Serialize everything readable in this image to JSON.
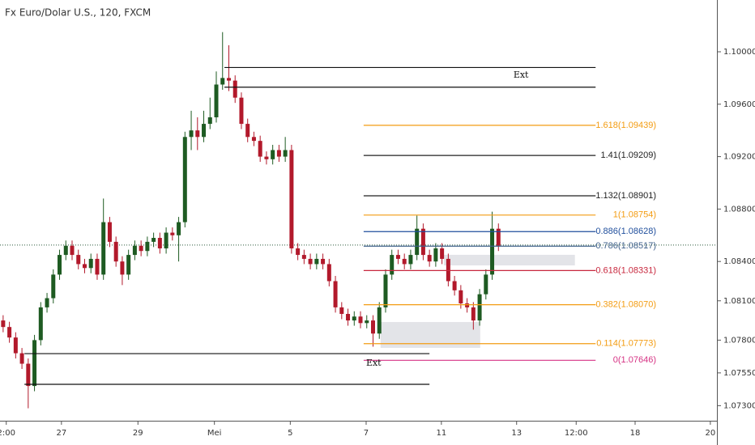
{
  "chart_data": {
    "type": "candlestick",
    "title": "Fx Euro/Dolar U.S., 120, FXCM",
    "x": [
      0,
      1,
      2,
      3,
      4,
      5,
      6,
      7,
      8,
      9,
      10,
      11,
      12,
      13,
      14,
      15,
      16,
      17,
      18,
      19,
      20,
      21,
      22,
      23,
      24,
      25,
      26,
      27,
      28,
      29,
      30,
      31,
      32,
      33,
      34,
      35,
      36,
      37,
      38,
      39,
      40,
      41,
      42,
      43,
      44,
      45,
      46,
      47,
      48,
      49,
      50,
      51,
      52,
      53,
      54,
      55,
      56,
      57,
      58,
      59,
      60,
      61,
      62,
      63,
      64,
      65,
      66,
      67,
      68,
      69,
      70,
      71,
      72,
      73,
      74,
      75,
      76,
      77,
      78,
      79
    ],
    "open": [
      1.0795,
      1.079,
      1.0782,
      1.077,
      1.0762,
      1.0745,
      1.078,
      1.0805,
      1.0812,
      1.083,
      1.0845,
      1.0852,
      1.0845,
      1.0838,
      1.0835,
      1.0842,
      1.083,
      1.087,
      1.0855,
      1.084,
      1.083,
      1.0845,
      1.0852,
      1.0848,
      1.0855,
      1.0858,
      1.085,
      1.0862,
      1.086,
      1.087,
      1.0935,
      1.094,
      1.0935,
      1.0945,
      1.095,
      1.0975,
      1.098,
      1.0978,
      1.0965,
      1.0945,
      1.0935,
      1.0932,
      1.092,
      1.0918,
      1.0925,
      1.092,
      1.0925,
      1.085,
      1.0845,
      1.0842,
      1.0838,
      1.0842,
      1.0838,
      1.0825,
      1.0805,
      1.08,
      1.0795,
      1.0798,
      1.0793,
      1.0795,
      1.0785,
      1.0805,
      1.083,
      1.0845,
      1.0842,
      1.0838,
      1.0845,
      1.0865,
      1.0845,
      1.084,
      1.085,
      1.0842,
      1.0825,
      1.0818,
      1.0808,
      1.0805,
      1.0795,
      1.0815,
      1.083,
      1.0865
    ],
    "high": [
      1.0799,
      1.0794,
      1.0786,
      1.0774,
      1.0766,
      1.0784,
      1.0809,
      1.0816,
      1.0834,
      1.0849,
      1.0856,
      1.0856,
      1.0849,
      1.0842,
      1.0846,
      1.0846,
      1.0888,
      1.0874,
      1.0859,
      1.0844,
      1.0849,
      1.0856,
      1.0856,
      1.0859,
      1.0862,
      1.0862,
      1.0866,
      1.0866,
      1.0874,
      1.0939,
      1.0955,
      1.095,
      1.0955,
      1.0965,
      1.0985,
      1.1015,
      1.1005,
      1.0982,
      1.0969,
      1.0949,
      1.0939,
      1.0936,
      1.0924,
      1.0929,
      1.0929,
      1.0935,
      1.0929,
      1.0854,
      1.0849,
      1.0846,
      1.0846,
      1.0846,
      1.0842,
      1.0829,
      1.0809,
      1.0804,
      1.0802,
      1.0802,
      1.0799,
      1.0799,
      1.0809,
      1.0834,
      1.0849,
      1.0849,
      1.0846,
      1.0849,
      1.0875,
      1.0869,
      1.0849,
      1.0854,
      1.0854,
      1.0846,
      1.0829,
      1.0822,
      1.0812,
      1.0809,
      1.0819,
      1.0834,
      1.0878,
      1.0869
    ],
    "low": [
      1.0786,
      1.0778,
      1.0766,
      1.0758,
      1.0728,
      1.0741,
      1.0776,
      1.0801,
      1.0808,
      1.0826,
      1.0841,
      1.0841,
      1.0834,
      1.0831,
      1.0831,
      1.0826,
      1.0826,
      1.0851,
      1.0836,
      1.0822,
      1.0826,
      1.0841,
      1.0844,
      1.0844,
      1.0851,
      1.0846,
      1.0846,
      1.0856,
      1.084,
      1.0866,
      1.0925,
      1.0925,
      1.0931,
      1.0941,
      1.0946,
      1.0971,
      1.097,
      1.0961,
      1.0941,
      1.0931,
      1.0928,
      1.0916,
      1.0914,
      1.0914,
      1.0916,
      1.0916,
      1.0846,
      1.0841,
      1.0838,
      1.0834,
      1.0834,
      1.0834,
      1.0821,
      1.0801,
      1.0796,
      1.0791,
      1.0791,
      1.0789,
      1.0789,
      1.0775,
      1.0781,
      1.0801,
      1.0826,
      1.0838,
      1.0834,
      1.0834,
      1.0841,
      1.0841,
      1.0836,
      1.0836,
      1.0838,
      1.0821,
      1.0814,
      1.0804,
      1.0801,
      1.0788,
      1.0791,
      1.0811,
      1.0826,
      1.0848
    ],
    "close": [
      1.079,
      1.0782,
      1.077,
      1.0762,
      1.0745,
      1.078,
      1.0805,
      1.0812,
      1.083,
      1.0845,
      1.0852,
      1.0845,
      1.0838,
      1.0835,
      1.0842,
      1.083,
      1.087,
      1.0855,
      1.084,
      1.083,
      1.0845,
      1.0852,
      1.0848,
      1.0855,
      1.0858,
      1.085,
      1.0862,
      1.086,
      1.087,
      1.0935,
      1.094,
      1.0935,
      1.0945,
      1.095,
      1.0975,
      1.098,
      1.0978,
      1.0965,
      1.0945,
      1.0935,
      1.0932,
      1.092,
      1.0918,
      1.0925,
      1.092,
      1.0925,
      1.085,
      1.0845,
      1.0842,
      1.0838,
      1.0842,
      1.0838,
      1.0825,
      1.0805,
      1.08,
      1.0795,
      1.0798,
      1.0793,
      1.0795,
      1.0785,
      1.0805,
      1.083,
      1.0845,
      1.0842,
      1.0838,
      1.0845,
      1.0865,
      1.0845,
      1.084,
      1.085,
      1.0842,
      1.0825,
      1.0818,
      1.0808,
      1.0805,
      1.0795,
      1.0815,
      1.083,
      1.0865,
      1.0852
    ],
    "up_color": "#1e5b22",
    "down_color": "#b2192b",
    "xlim": [
      -0.5,
      113.85
    ],
    "xticks": [
      {
        "value": 0.5,
        "label": "2:00"
      },
      {
        "value": 9.3,
        "label": "27"
      },
      {
        "value": 21.5,
        "label": "29"
      },
      {
        "value": 33.7,
        "label": "Mei"
      },
      {
        "value": 45.8,
        "label": "5"
      },
      {
        "value": 57.9,
        "label": "7"
      },
      {
        "value": 69.9,
        "label": "11"
      },
      {
        "value": 81.9,
        "label": "13"
      },
      {
        "value": 91.4,
        "label": "12:00"
      },
      {
        "value": 100.8,
        "label": "18"
      },
      {
        "value": 112.8,
        "label": "20"
      }
    ],
    "ylim": [
      1.07185,
      1.10395
    ],
    "yticks": [
      {
        "value": 1.1,
        "label": "1.10000"
      },
      {
        "value": 1.096,
        "label": "1.09600"
      },
      {
        "value": 1.092,
        "label": "1.09200"
      },
      {
        "value": 1.088,
        "label": "1.08800"
      },
      {
        "value": 1.084,
        "label": "1.08400"
      },
      {
        "value": 1.081,
        "label": "1.08100"
      },
      {
        "value": 1.078,
        "label": "1.07800"
      },
      {
        "value": 1.0755,
        "label": "1.07550"
      },
      {
        "value": 1.073,
        "label": "1.07300"
      }
    ],
    "last_price": 1.08525,
    "fib_range": [
      57.5,
      94.5
    ],
    "levels": [
      {
        "label": "1.618(1.09439)",
        "value": 1.09439,
        "color": "#f39c12"
      },
      {
        "label": "1.41(1.09209)",
        "value": 1.09209,
        "color": "#222222"
      },
      {
        "label": "1.132(1.08901)",
        "value": 1.08901,
        "color": "#222222"
      },
      {
        "label": "1(1.08754)",
        "value": 1.08754,
        "color": "#f39c12"
      },
      {
        "label": "0.886(1.08628)",
        "value": 1.08628,
        "color": "#1f4e9c"
      },
      {
        "label": "0.786(1.08517)",
        "value": 1.08517,
        "color": "#3d5f8a"
      },
      {
        "label": "0.618(1.08331)",
        "value": 1.08331,
        "color": "#c8283e"
      },
      {
        "label": "0.382(1.08070)",
        "value": 1.0807,
        "color": "#f39c12"
      },
      {
        "label": "0.114(1.07773)",
        "value": 1.07773,
        "color": "#f39c12"
      },
      {
        "label": "0(1.07646)",
        "value": 1.07646,
        "color": "#d63384"
      }
    ],
    "ext_lines": [
      {
        "value": 1.0988,
        "x0": 35.3,
        "x1": 94.5
      },
      {
        "value": 1.0973,
        "x0": 35.3,
        "x1": 94.5
      },
      {
        "value": 1.07697,
        "x0": 3.4,
        "x1": 68
      },
      {
        "value": 1.07463,
        "x0": 3.4,
        "x1": 68
      }
    ],
    "zones": [
      {
        "x0": 70.3,
        "x1": 91.2,
        "y0": 1.0837,
        "y1": 1.08451
      },
      {
        "x0": 60.2,
        "x1": 76.1,
        "y0": 1.07741,
        "y1": 1.07938
      }
    ],
    "annotations": [
      {
        "text": "Ext",
        "x": 82.6,
        "y": 1.09821
      },
      {
        "text": "Ext",
        "x": 59.1,
        "y": 1.07623
      }
    ]
  }
}
